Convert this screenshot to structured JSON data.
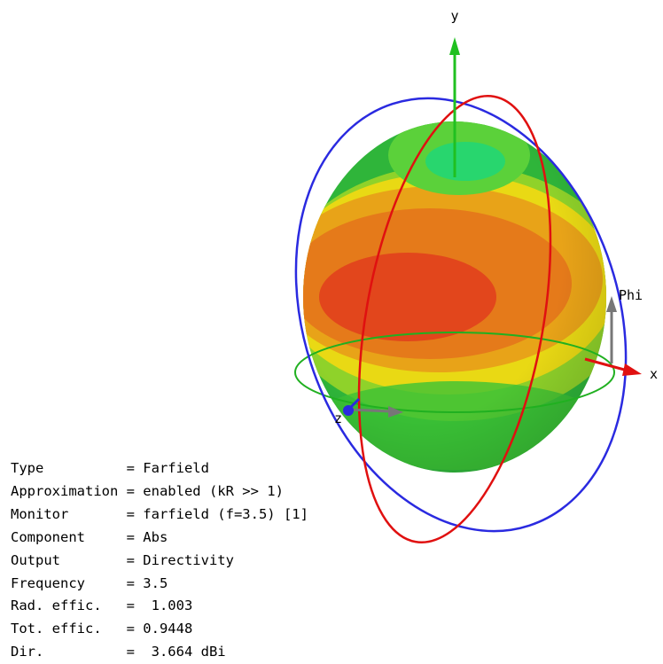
{
  "axes": {
    "x": "x",
    "y": "y",
    "z": "z",
    "phi": "Phi"
  },
  "info": {
    "rows": [
      {
        "label": "Type",
        "value": "= Farfield"
      },
      {
        "label": "Approximation",
        "value": "= enabled (kR >> 1)"
      },
      {
        "label": "Monitor",
        "value": "= farfield (f=3.5) [1]"
      },
      {
        "label": "Component",
        "value": "= Abs"
      },
      {
        "label": "Output",
        "value": "= Directivity"
      },
      {
        "label": "Frequency",
        "value": "= 3.5"
      },
      {
        "label": "Rad. effic.",
        "value": "=  1.003"
      },
      {
        "label": "Tot. effic.",
        "value": "= 0.9448"
      },
      {
        "label": "Dir.",
        "value": "=  3.664 dBi"
      }
    ]
  }
}
